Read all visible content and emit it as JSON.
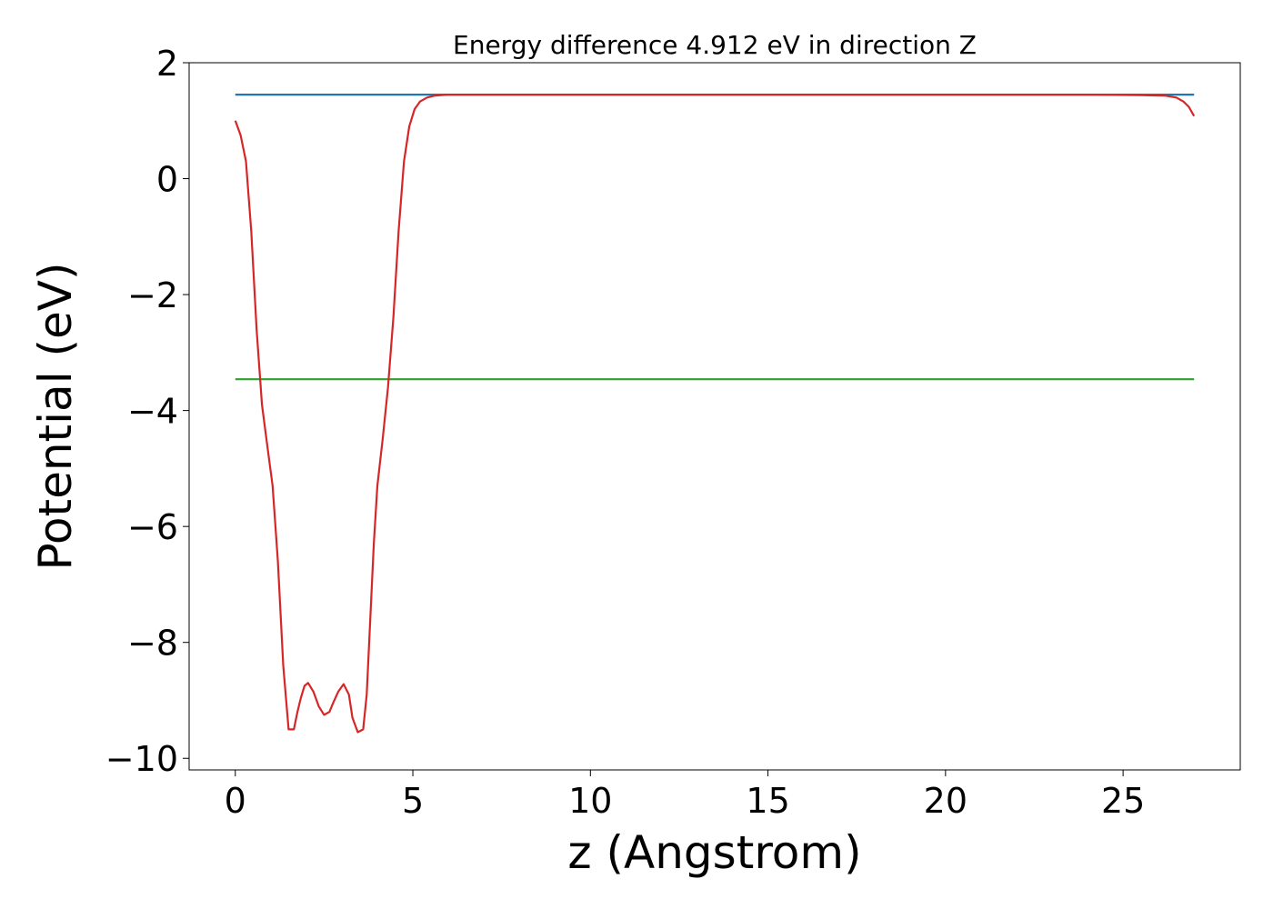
{
  "chart_data": {
    "type": "line",
    "title": "Energy difference 4.912 eV in direction Z",
    "xlabel": "z (Angstrom)",
    "ylabel": "Potential (eV)",
    "xlim": [
      -1.3,
      28.3
    ],
    "ylim": [
      -10.2,
      2
    ],
    "xticks": [
      0,
      5,
      10,
      15,
      20,
      25
    ],
    "yticks": [
      2,
      0,
      -2,
      -4,
      -6,
      -8,
      -10
    ],
    "xtick_labels": [
      "0",
      "5",
      "10",
      "15",
      "20",
      "25"
    ],
    "ytick_labels": [
      "2",
      "0",
      "−2",
      "−4",
      "−6",
      "−8",
      "−10"
    ],
    "grid": false,
    "legend": "none",
    "series": [
      {
        "color": "#1f77b4",
        "x": [
          0,
          27
        ],
        "y": [
          1.45,
          1.45
        ]
      },
      {
        "color": "#2ca02c",
        "x": [
          0,
          27
        ],
        "y": [
          -3.46,
          -3.46
        ]
      },
      {
        "color": "#d62728",
        "x": [
          0,
          0.15,
          0.3,
          0.45,
          0.6,
          0.75,
          0.9,
          1.05,
          1.2,
          1.35,
          1.5,
          1.65,
          1.75,
          1.85,
          1.95,
          2.05,
          2.2,
          2.35,
          2.5,
          2.65,
          2.75,
          2.9,
          3.05,
          3.2,
          3.3,
          3.45,
          3.6,
          3.7,
          3.8,
          3.9,
          4.0,
          4.15,
          4.3,
          4.45,
          4.6,
          4.75,
          4.9,
          5.05,
          5.2,
          5.4,
          5.6,
          5.8,
          6.0,
          6.3,
          6.6,
          7.0,
          7.5,
          8.0,
          9.0,
          10.0,
          12.0,
          15.0,
          18.0,
          21.0,
          24.0,
          25.5,
          26.2,
          26.5,
          26.7,
          26.85,
          27.0
        ],
        "y": [
          1.0,
          0.75,
          0.3,
          -0.9,
          -2.6,
          -3.9,
          -4.6,
          -5.3,
          -6.6,
          -8.4,
          -9.5,
          -9.5,
          -9.2,
          -8.95,
          -8.75,
          -8.7,
          -8.85,
          -9.1,
          -9.25,
          -9.2,
          -9.05,
          -8.85,
          -8.72,
          -8.9,
          -9.3,
          -9.55,
          -9.5,
          -8.9,
          -7.6,
          -6.3,
          -5.3,
          -4.5,
          -3.6,
          -2.4,
          -0.9,
          0.3,
          0.9,
          1.2,
          1.33,
          1.4,
          1.43,
          1.44,
          1.45,
          1.45,
          1.45,
          1.45,
          1.45,
          1.45,
          1.45,
          1.45,
          1.45,
          1.45,
          1.45,
          1.45,
          1.45,
          1.44,
          1.43,
          1.4,
          1.33,
          1.24,
          1.08
        ]
      }
    ]
  }
}
